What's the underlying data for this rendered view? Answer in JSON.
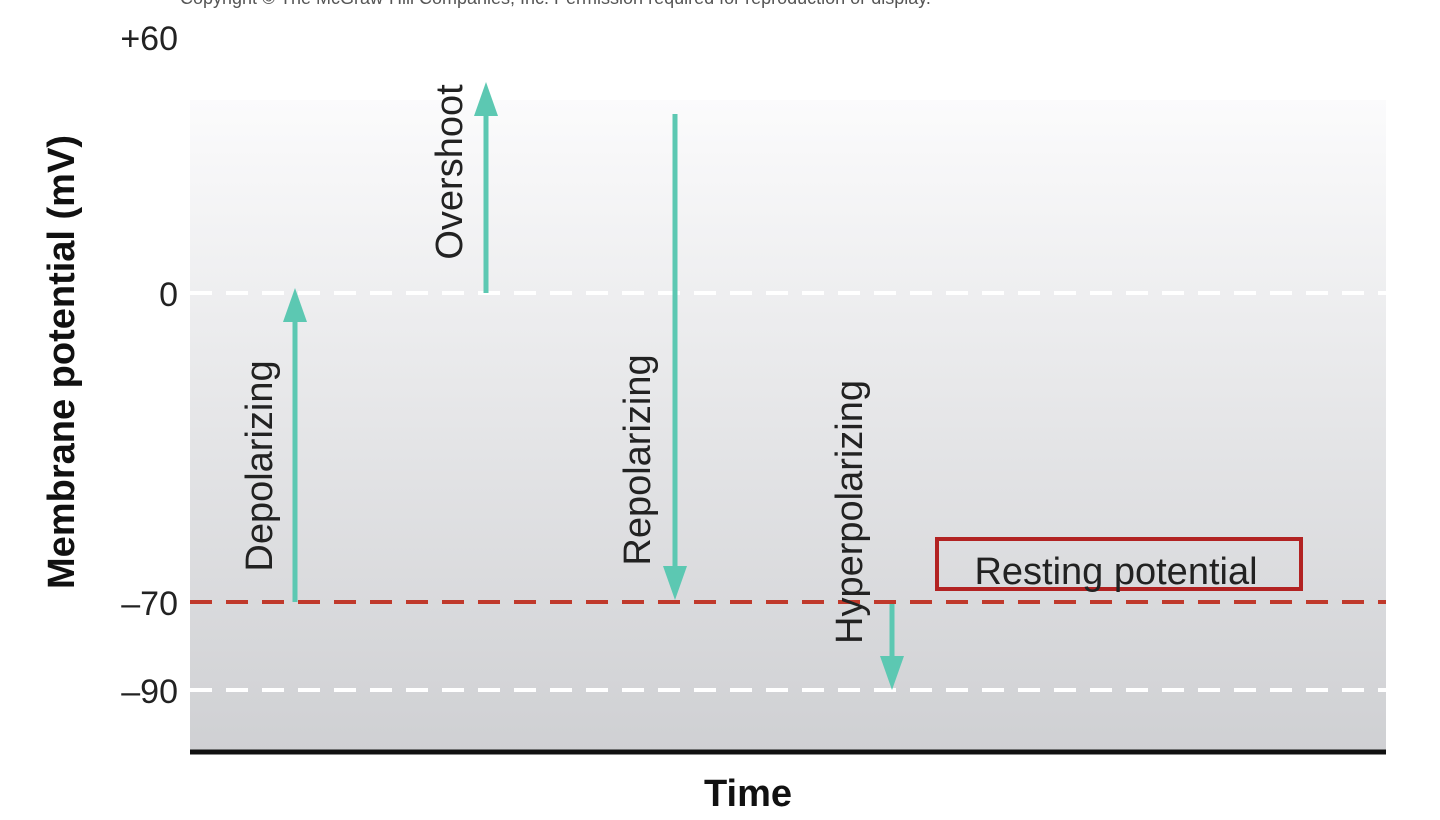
{
  "copyright": "Copyright © The McGraw-Hill Companies, Inc. Permission required for reproduction or display.",
  "y_axis": {
    "label": "Membrane potential (mV)",
    "ticks": [
      "+60",
      "0",
      "–70",
      "–90"
    ]
  },
  "x_axis": {
    "label": "Time"
  },
  "arrows": {
    "depolarizing": "Depolarizing",
    "overshoot": "Overshoot",
    "repolarizing": "Repolarizing",
    "hyperpolarizing": "Hyperpolarizing"
  },
  "resting_label": "Resting potential",
  "colors": {
    "arrow": "#5cc8b2",
    "resting_line": "#c0392b",
    "resting_box": "#b22222",
    "axis": "#111111",
    "text": "#222222"
  }
}
